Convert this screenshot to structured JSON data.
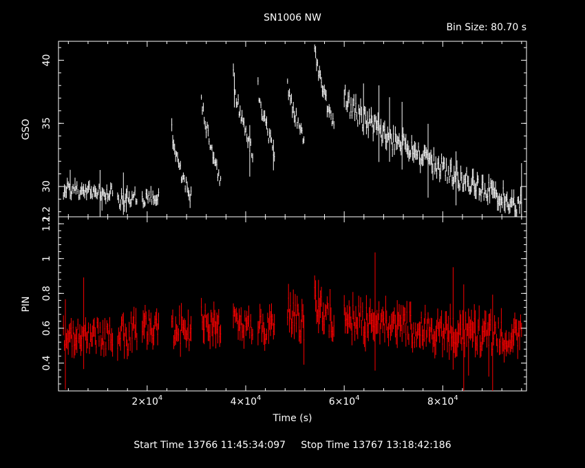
{
  "chart_data": {
    "type": "line",
    "title": "SN1006 NW",
    "bin_label": "Bin Size: 80.70 s",
    "xlabel": "Time (s)",
    "footer": "Start Time 13766 11:45:34:097     Stop Time 13767 13:18:42:186",
    "xlim": [
      2000,
      97000
    ],
    "x_ticks": [
      {
        "value": 20000,
        "mant": "2",
        "exp": "4"
      },
      {
        "value": 40000,
        "mant": "4",
        "exp": "4"
      },
      {
        "value": 60000,
        "mant": "6",
        "exp": "4"
      },
      {
        "value": 80000,
        "mant": "8",
        "exp": "4"
      }
    ],
    "panels": [
      {
        "name": "GSO",
        "ylabel": "GSO",
        "color": "#ffffff",
        "ylim": [
          27.6,
          41.5
        ],
        "y_ticks": [
          "30",
          "35",
          "40"
        ],
        "y_tick_values": [
          30,
          35,
          40
        ],
        "edge_label": "1.2",
        "segments": [
          {
            "x": [
              3000,
              13000
            ],
            "y": [
              29.8,
              29.5
            ],
            "noise": 0.55
          },
          {
            "x": [
              14000,
              18000
            ],
            "y": [
              28.8,
              29.2
            ],
            "noise": 0.55
          },
          {
            "x": [
              19000,
              22500
            ],
            "y": [
              29.0,
              29.3
            ],
            "noise": 0.5
          },
          {
            "x": [
              25000,
              29000
            ],
            "y": [
              34.3,
              29.0
            ],
            "noise": 0.6
          },
          {
            "x": [
              31000,
              35000
            ],
            "y": [
              37.3,
              30.4
            ],
            "noise": 0.55
          },
          {
            "x": [
              37500,
              41500
            ],
            "y": [
              38.8,
              32.5
            ],
            "noise": 0.55
          },
          {
            "x": [
              42500,
              46000
            ],
            "y": [
              38.0,
              32.4
            ],
            "noise": 0.55
          },
          {
            "x": [
              48500,
              52000
            ],
            "y": [
              38.4,
              33.5
            ],
            "noise": 0.55
          },
          {
            "x": [
              54000,
              58000
            ],
            "y": [
              41.2,
              34.8
            ],
            "noise": 0.6
          },
          {
            "x": [
              60000,
              96000
            ],
            "y": [
              37.2,
              28.5
            ],
            "noise": 0.8
          }
        ]
      },
      {
        "name": "PIN",
        "ylabel": "PIN",
        "color": "#ff0000",
        "ylim": [
          0.24,
          1.24
        ],
        "y_ticks": [
          "0.4",
          "0.6",
          "0.8",
          "1",
          "1.2"
        ],
        "y_tick_values": [
          0.4,
          0.6,
          0.8,
          1.0,
          1.2
        ],
        "segments": [
          {
            "x": [
              3000,
              13000
            ],
            "y": [
              0.56,
              0.55
            ],
            "noise": 0.08
          },
          {
            "x": [
              14000,
              18000
            ],
            "y": [
              0.56,
              0.58
            ],
            "noise": 0.1
          },
          {
            "x": [
              19000,
              22500
            ],
            "y": [
              0.58,
              0.6
            ],
            "noise": 0.09
          },
          {
            "x": [
              25000,
              29000
            ],
            "y": [
              0.6,
              0.58
            ],
            "noise": 0.09
          },
          {
            "x": [
              31000,
              35000
            ],
            "y": [
              0.64,
              0.6
            ],
            "noise": 0.09
          },
          {
            "x": [
              37500,
              41500
            ],
            "y": [
              0.68,
              0.6
            ],
            "noise": 0.08
          },
          {
            "x": [
              42500,
              46000
            ],
            "y": [
              0.62,
              0.6
            ],
            "noise": 0.08
          },
          {
            "x": [
              48500,
              52000
            ],
            "y": [
              0.72,
              0.62
            ],
            "noise": 0.09
          },
          {
            "x": [
              54000,
              58000
            ],
            "y": [
              0.78,
              0.62
            ],
            "noise": 0.1
          },
          {
            "x": [
              60000,
              96000
            ],
            "y": [
              0.66,
              0.55
            ],
            "noise": 0.09
          }
        ]
      }
    ]
  }
}
